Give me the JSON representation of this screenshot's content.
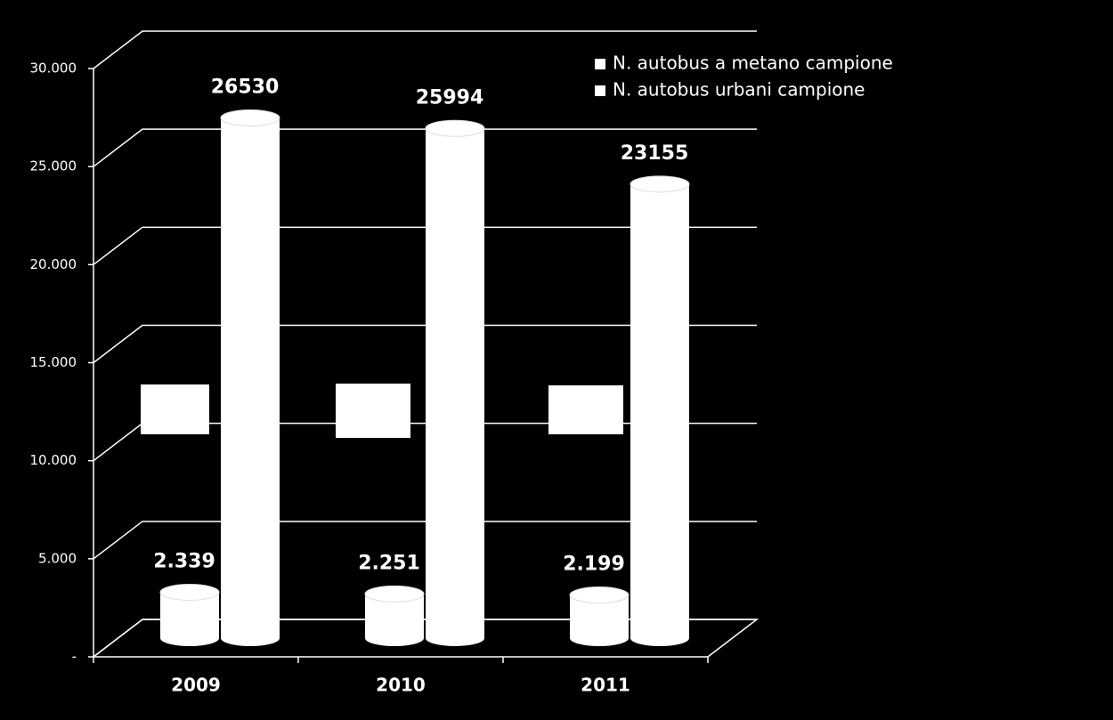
{
  "chart_data": {
    "type": "bar3d",
    "categories": [
      "2009",
      "2010",
      "2011"
    ],
    "series": [
      {
        "name": "N. autobus a metano campione",
        "color": "#ffffff",
        "values": [
          2339,
          2251,
          2199
        ],
        "value_labels": [
          "2.339",
          "2.251",
          "2.199"
        ]
      },
      {
        "name": "N. autobus urbani campione",
        "color": "#ffffff",
        "values": [
          26530,
          25994,
          23155
        ]
      }
    ],
    "ylim": [
      0,
      30000
    ],
    "yticks": [
      {
        "value": 0,
        "label": "-"
      },
      {
        "value": 5000,
        "label": "5.000"
      },
      {
        "value": 10000,
        "label": "10.000"
      },
      {
        "value": 15000,
        "label": "15.000"
      },
      {
        "value": 20000,
        "label": "20.000"
      },
      {
        "value": 25000,
        "label": "25.000"
      },
      {
        "value": 30000,
        "label": "30.000"
      }
    ],
    "grid": true
  }
}
